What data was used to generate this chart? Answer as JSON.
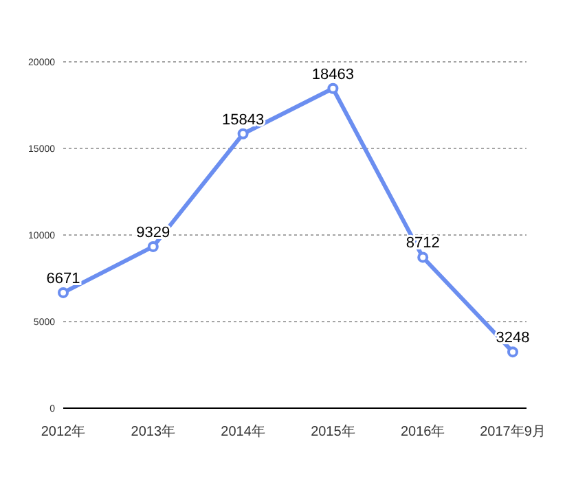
{
  "chart_data": {
    "type": "line",
    "categories": [
      "2012年",
      "2013年",
      "2014年",
      "2015年",
      "2016年",
      "2017年9月"
    ],
    "series": [
      {
        "color": "#6b8ef0",
        "values": [
          6671,
          9329,
          15843,
          18463,
          8712,
          3248
        ]
      }
    ],
    "ylim": [
      0,
      20000
    ],
    "yticks": [
      0,
      5000,
      10000,
      15000,
      20000
    ],
    "grid": "y",
    "marker": "circle",
    "line_style": "solid",
    "data_labels": true
  }
}
